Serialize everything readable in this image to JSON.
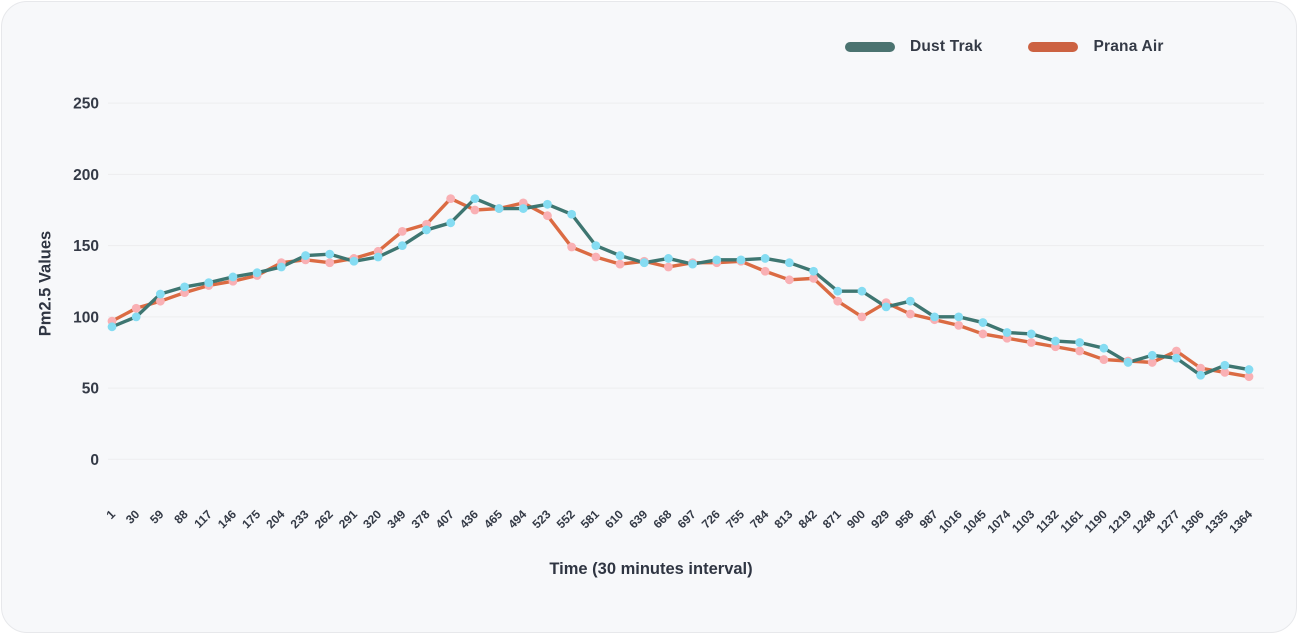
{
  "legend": {
    "items": [
      {
        "label": "Dust Trak",
        "swatch_color": "#4B7370"
      },
      {
        "label": "Prana Air",
        "swatch_color": "#CC6242"
      }
    ]
  },
  "chart_data": {
    "type": "line",
    "title": "",
    "xlabel": "Time (30 minutes interval)",
    "ylabel": "Pm2.5 Values",
    "x": [
      "1",
      "30",
      "59",
      "88",
      "117",
      "146",
      "175",
      "204",
      "233",
      "262",
      "291",
      "320",
      "349",
      "378",
      "407",
      "436",
      "465",
      "494",
      "523",
      "552",
      "581",
      "610",
      "639",
      "668",
      "697",
      "726",
      "755",
      "784",
      "813",
      "842",
      "871",
      "900",
      "929",
      "958",
      "987",
      "1016",
      "1045",
      "1074",
      "1103",
      "1132",
      "1161",
      "1190",
      "1219",
      "1248",
      "1277",
      "1306",
      "1335",
      "1364"
    ],
    "y_ticks": [
      0,
      50,
      100,
      150,
      200,
      250
    ],
    "ylim": [
      0,
      250
    ],
    "grid": true,
    "legend_position": "top-right",
    "series": [
      {
        "name": "Dust Trak",
        "line_color": "#3E7671",
        "marker_color": "#85DCF2",
        "values": [
          93,
          100,
          116,
          121,
          124,
          128,
          131,
          135,
          143,
          144,
          139,
          142,
          150,
          161,
          166,
          183,
          176,
          176,
          179,
          172,
          150,
          143,
          138,
          141,
          137,
          140,
          140,
          141,
          138,
          132,
          118,
          118,
          107,
          111,
          100,
          100,
          96,
          89,
          88,
          83,
          82,
          78,
          68,
          73,
          71,
          59,
          66,
          63
        ]
      },
      {
        "name": "Prana Air",
        "line_color": "#DB6B43",
        "marker_color": "#F9B0B4",
        "values": [
          97,
          106,
          111,
          117,
          122,
          125,
          129,
          138,
          140,
          138,
          141,
          146,
          160,
          165,
          183,
          175,
          176,
          180,
          171,
          149,
          142,
          137,
          139,
          135,
          138,
          138,
          139,
          132,
          126,
          127,
          111,
          100,
          110,
          102,
          98,
          94,
          88,
          85,
          82,
          79,
          76,
          70,
          69,
          68,
          76,
          64,
          61,
          58
        ]
      }
    ]
  },
  "colors": {
    "card_background": "#F7F8FA",
    "card_border": "#E7E8EB",
    "gridline": "#EDEDEF",
    "axis_text": "#343A46",
    "title_text": "#2F3542"
  }
}
